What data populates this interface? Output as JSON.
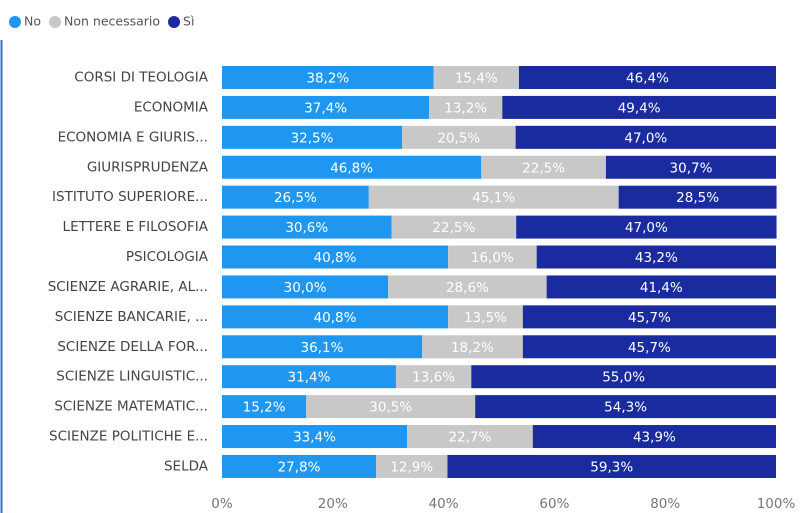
{
  "chart_data": {
    "type": "stacked-bar-horizontal",
    "categories": [
      "CORSI DI TEOLOGIA",
      "ECONOMIA",
      "ECONOMIA E GIURIS...",
      "GIURISPRUDENZA",
      "ISTITUTO SUPERIORE...",
      "LETTERE E FILOSOFIA",
      "PSICOLOGIA",
      "SCIENZE AGRARIE, AL...",
      "SCIENZE BANCARIE, ...",
      "SCIENZE DELLA FOR...",
      "SCIENZE LINGUISTIC...",
      "SCIENZE MATEMATIC...",
      "SCIENZE POLITICHE E...",
      "SELDA"
    ],
    "series": [
      {
        "name": "No",
        "color": "#1f97f0",
        "values": [
          38.2,
          37.4,
          32.5,
          46.8,
          26.5,
          30.6,
          40.8,
          30.0,
          40.8,
          36.1,
          31.4,
          15.2,
          33.4,
          27.8
        ],
        "value_labels": [
          "38,2%",
          "37,4%",
          "32,5%",
          "46,8%",
          "26,5%",
          "30,6%",
          "40,8%",
          "30,0%",
          "40,8%",
          "36,1%",
          "31,4%",
          "15,2%",
          "33,4%",
          "27,8%"
        ]
      },
      {
        "name": "Non necessario",
        "color": "#c8c8c8",
        "values": [
          15.4,
          13.2,
          20.5,
          22.5,
          45.1,
          22.5,
          16.0,
          28.6,
          13.5,
          18.2,
          13.6,
          30.5,
          22.7,
          12.9
        ],
        "value_labels": [
          "15,4%",
          "13,2%",
          "20,5%",
          "22,5%",
          "45,1%",
          "22,5%",
          "16,0%",
          "28,6%",
          "13,5%",
          "18,2%",
          "13,6%",
          "30,5%",
          "22,7%",
          "12,9%"
        ]
      },
      {
        "name": "Sì",
        "color": "#1a2b9f",
        "values": [
          46.4,
          49.4,
          47.0,
          30.7,
          28.5,
          47.0,
          43.2,
          41.4,
          45.7,
          45.7,
          55.0,
          54.3,
          43.9,
          59.3
        ],
        "value_labels": [
          "46,4%",
          "49,4%",
          "47,0%",
          "30,7%",
          "28,5%",
          "47,0%",
          "43,2%",
          "41,4%",
          "45,7%",
          "45,7%",
          "55,0%",
          "54,3%",
          "43,9%",
          "59,3%"
        ]
      }
    ],
    "xlim": [
      0,
      100
    ],
    "xticks": [
      {
        "value": 0,
        "label": "0%"
      },
      {
        "value": 20,
        "label": "20%"
      },
      {
        "value": 40,
        "label": "40%"
      },
      {
        "value": 60,
        "label": "60%"
      },
      {
        "value": 80,
        "label": "80%"
      },
      {
        "value": 100,
        "label": "100%"
      }
    ],
    "legend": "top-left"
  }
}
